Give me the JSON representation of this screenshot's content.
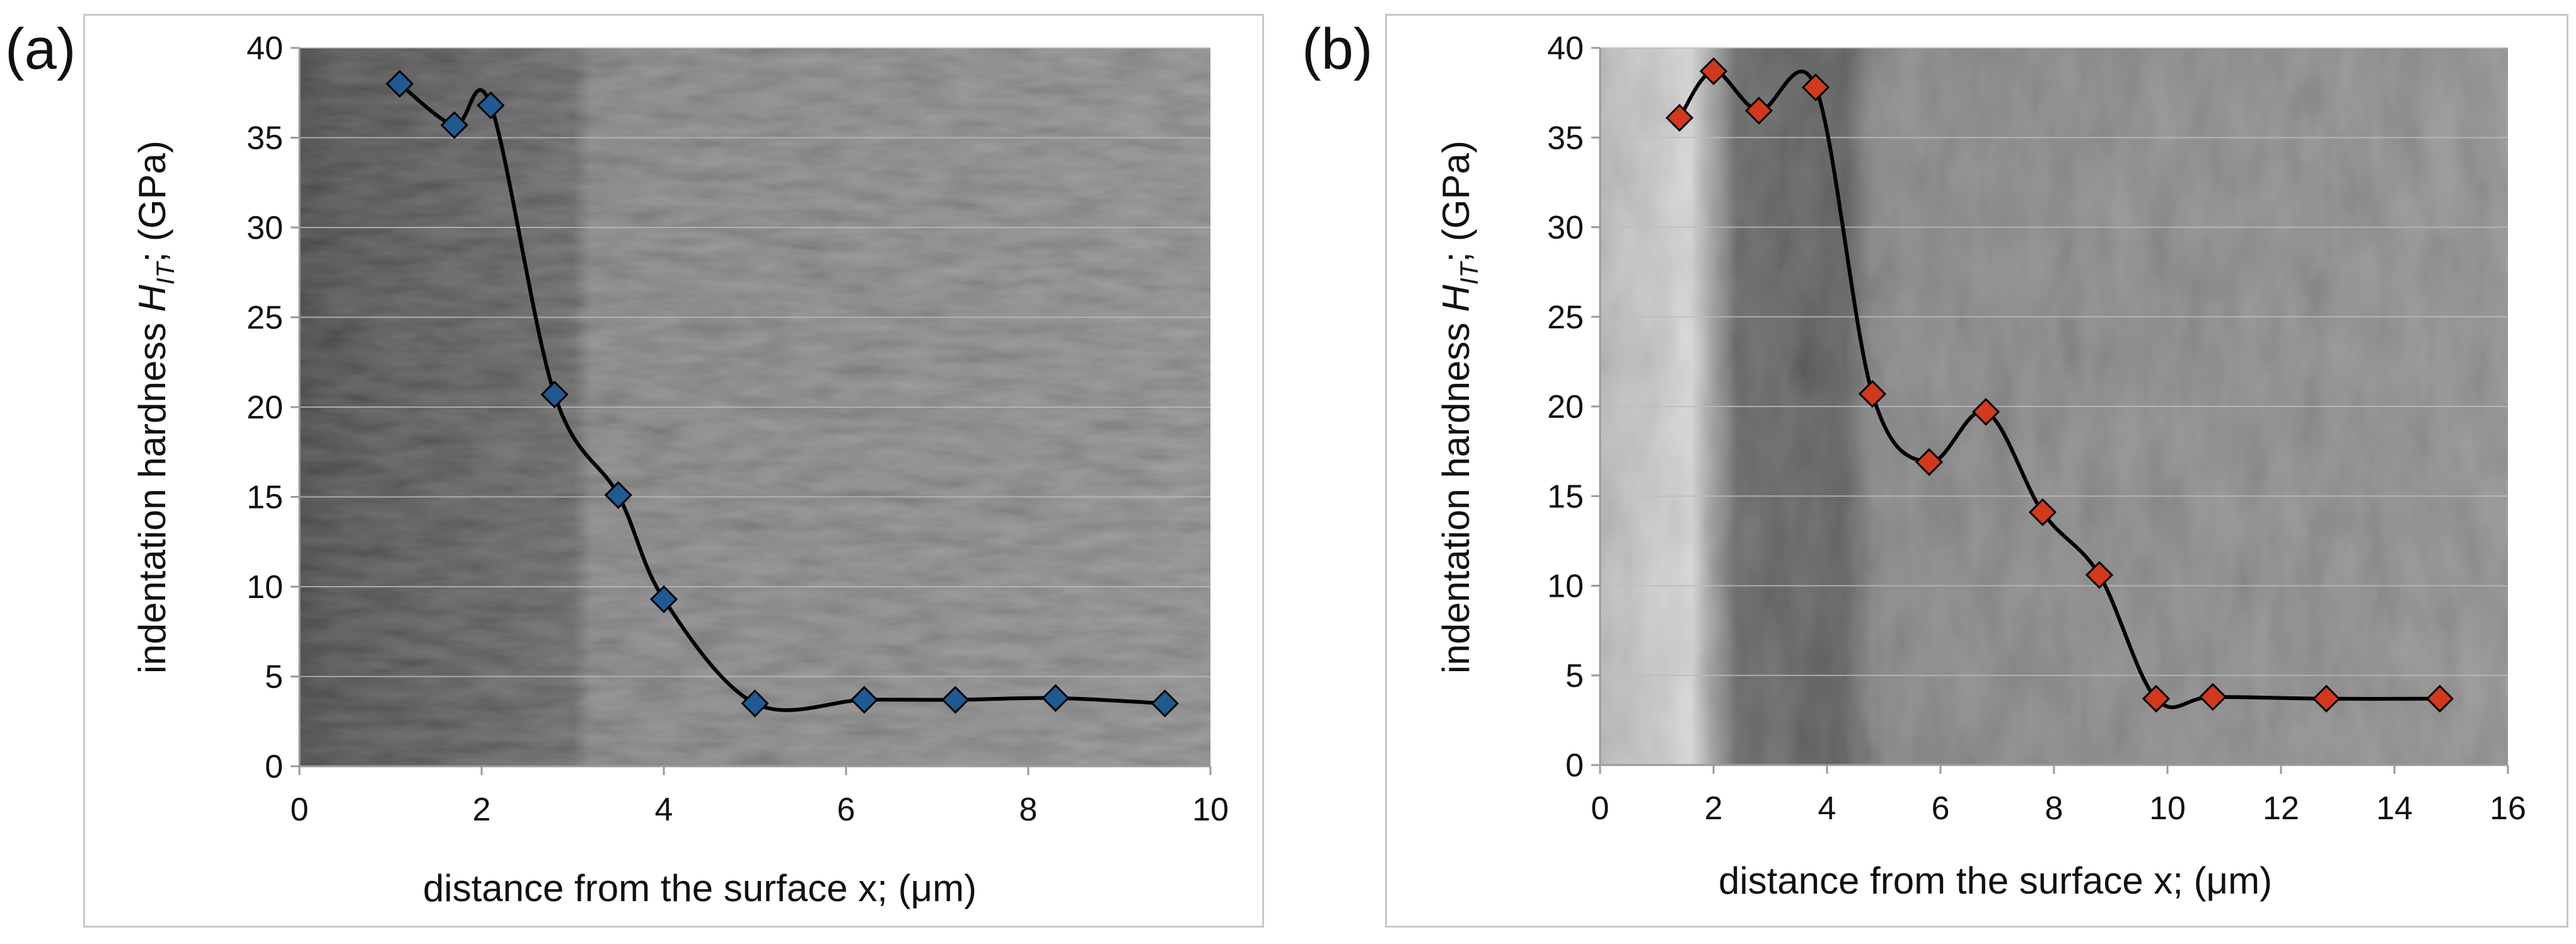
{
  "panels": [
    {
      "label": "(a)"
    },
    {
      "label": "(b)"
    }
  ],
  "colors": {
    "series_a_marker": "#1f5a93",
    "series_b_marker": "#d2391c",
    "line": "#000000",
    "gridline": "#bdbdbd",
    "frame": "#c8c8c8"
  },
  "chart_data": [
    {
      "type": "scatter",
      "xlabel": "distance from the surface x; (μm)",
      "ylabel": "indentation hardness H_IT; (GPa)",
      "ylabel_parts": {
        "prefix": "indentation hardness ",
        "symbol": "H",
        "subscript": "IT",
        "suffix": "; (GPa)"
      },
      "xlim": [
        0,
        10
      ],
      "ylim": [
        0,
        40
      ],
      "x_ticks": [
        0,
        2,
        4,
        6,
        8,
        10
      ],
      "y_ticks": [
        0,
        5,
        10,
        15,
        20,
        25,
        30,
        35,
        40
      ],
      "grid": true,
      "background": "SEM micrograph (cross-section)",
      "marker": "diamond",
      "smoothed_line": true,
      "x": [
        1.1,
        1.7,
        2.1,
        2.8,
        3.5,
        4.0,
        5.0,
        6.2,
        7.2,
        8.3,
        9.5
      ],
      "y": [
        38.0,
        35.7,
        36.8,
        20.7,
        15.1,
        9.3,
        3.5,
        3.7,
        3.7,
        3.8,
        3.5
      ]
    },
    {
      "type": "scatter",
      "xlabel": "distance from the surface x; (μm)",
      "ylabel": "indentation hardness H_IT; (GPa)",
      "ylabel_parts": {
        "prefix": "indentation hardness ",
        "symbol": "H",
        "subscript": "IT",
        "suffix": "; (GPa)"
      },
      "xlim": [
        0,
        16
      ],
      "ylim": [
        0,
        40
      ],
      "x_ticks": [
        0,
        2,
        4,
        6,
        8,
        10,
        12,
        14,
        16
      ],
      "y_ticks": [
        0,
        5,
        10,
        15,
        20,
        25,
        30,
        35,
        40
      ],
      "grid": true,
      "background": "SEM micrograph (cross-section)",
      "marker": "diamond",
      "smoothed_line": true,
      "x": [
        1.4,
        2.0,
        2.8,
        3.8,
        4.8,
        5.8,
        6.8,
        7.8,
        8.8,
        9.8,
        10.8,
        12.8,
        14.8
      ],
      "y": [
        36.1,
        38.7,
        36.5,
        37.8,
        20.7,
        16.9,
        19.7,
        14.1,
        10.6,
        3.7,
        3.8,
        3.7,
        3.7
      ]
    }
  ]
}
